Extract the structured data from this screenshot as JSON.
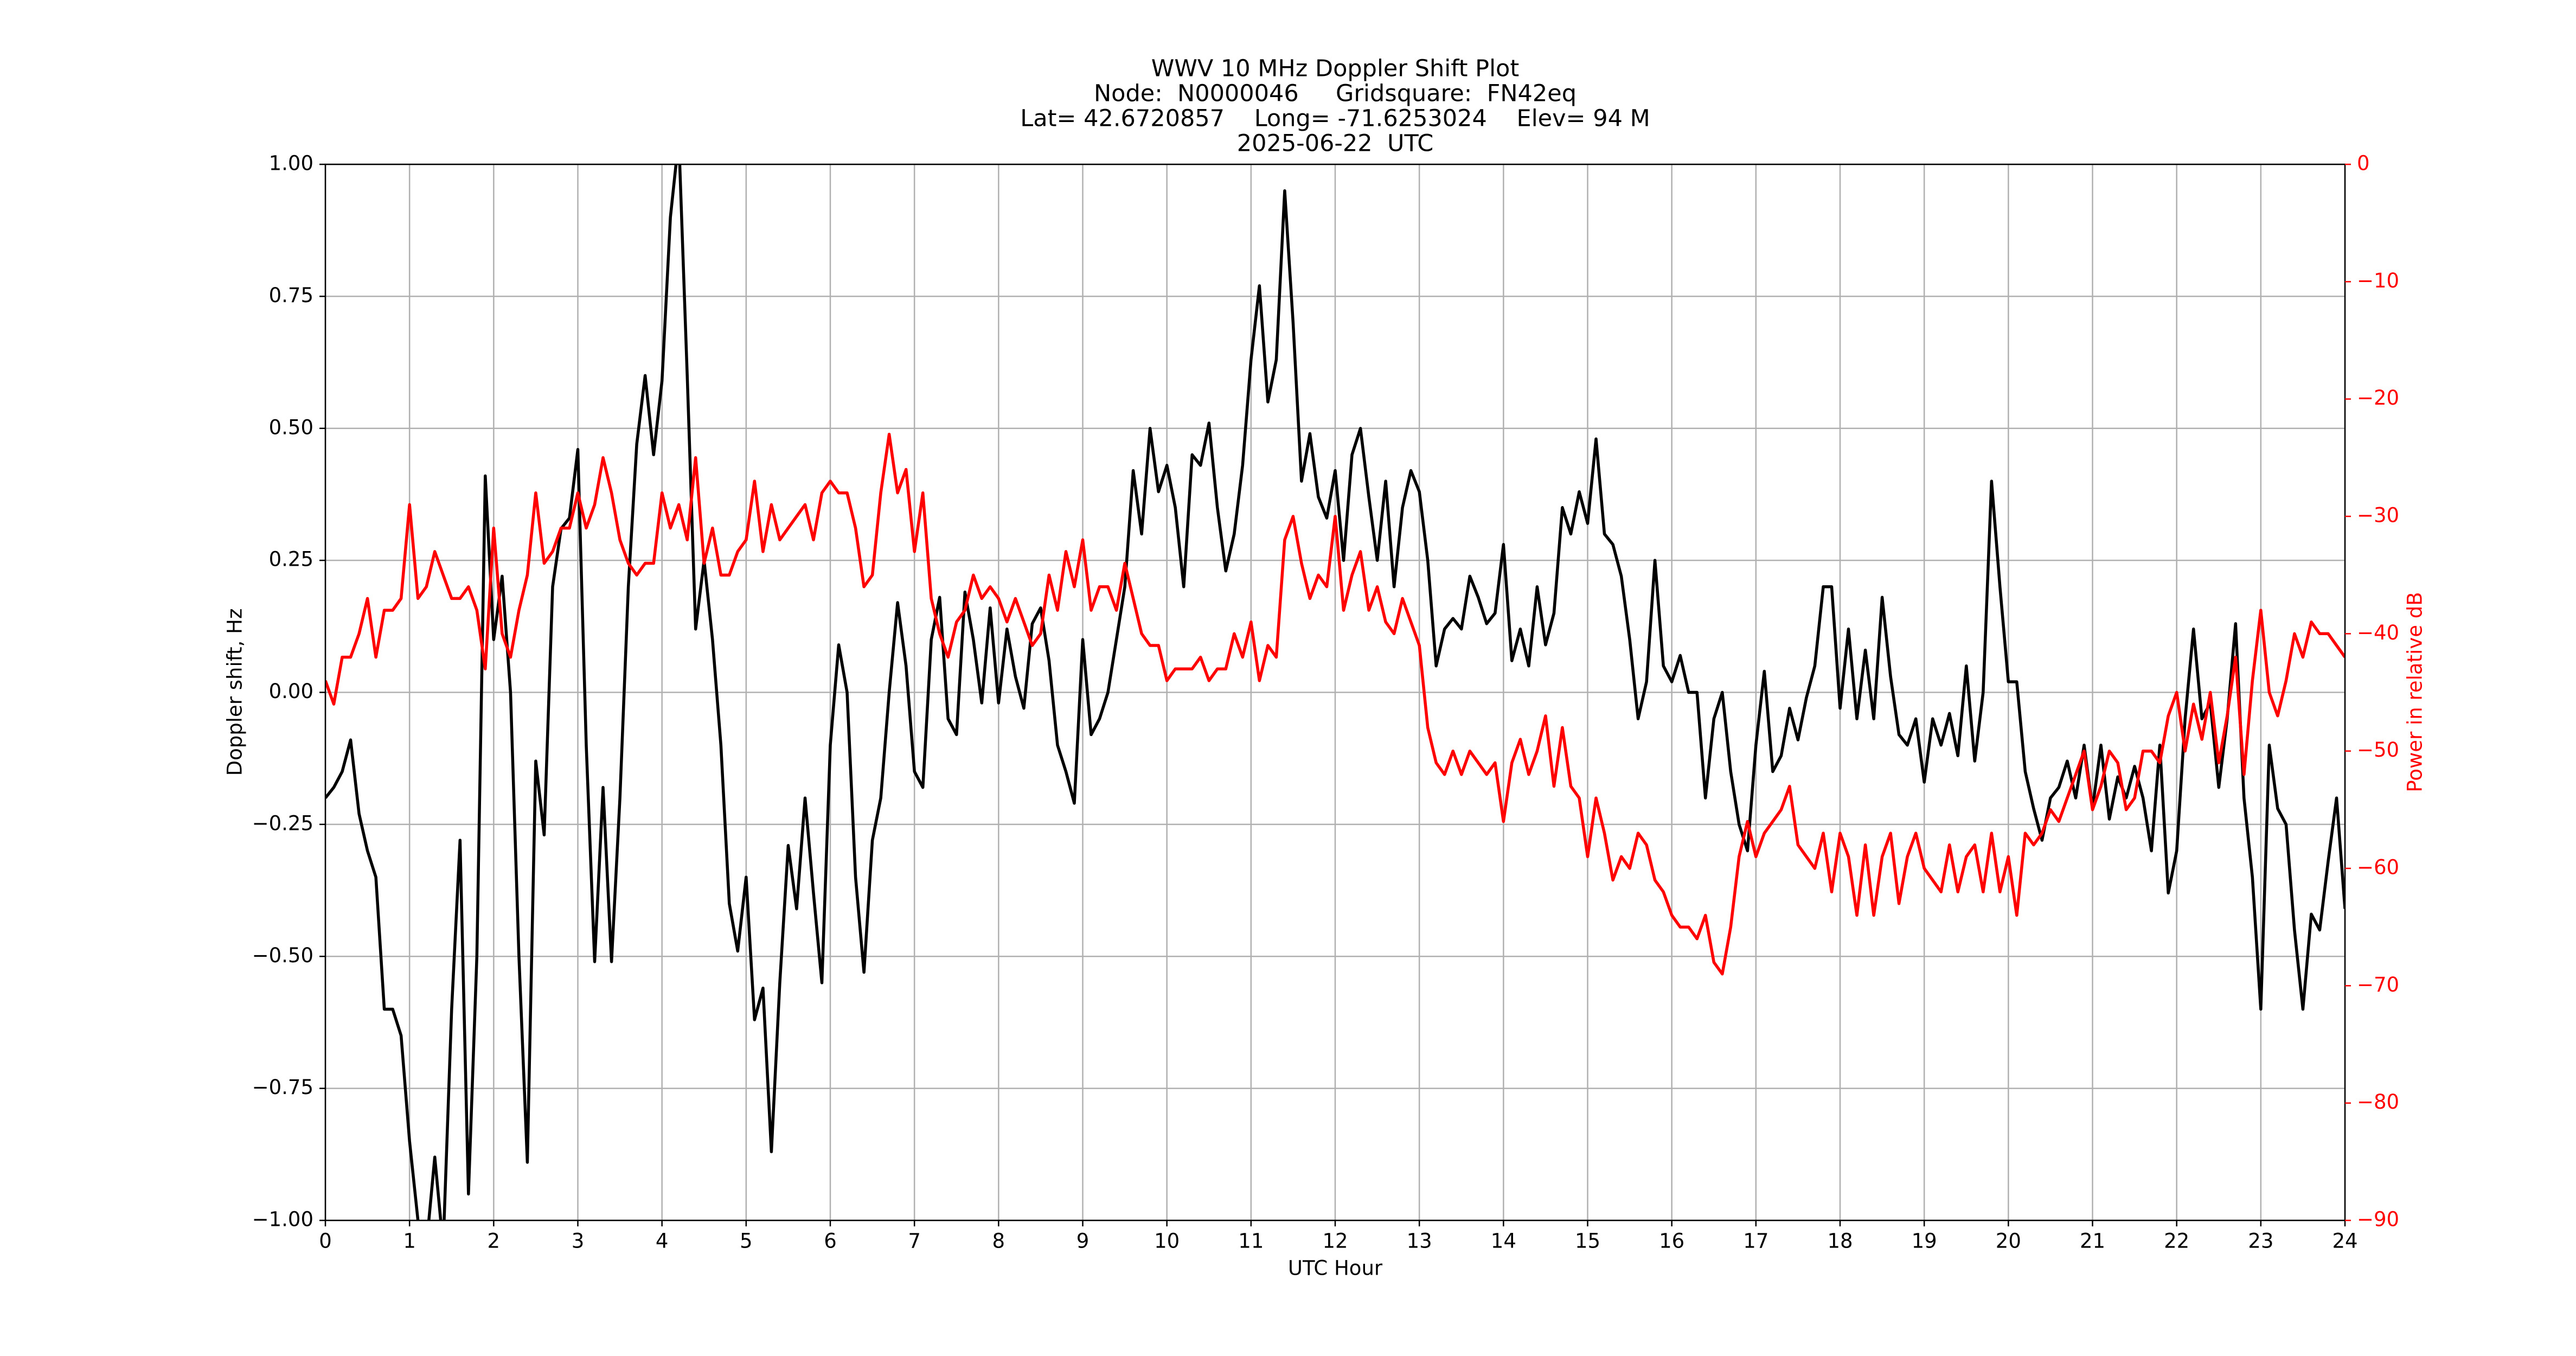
{
  "chart_data": {
    "type": "line",
    "title": "WWV 10 MHz Doppler Shift Plot",
    "subtitle": [
      "Node:  N0000046     Gridsquare:  FN42eq",
      "Lat= 42.6720857    Long= -71.6253024    Elev= 94 M",
      "2025-06-22  UTC"
    ],
    "xlabel": "UTC Hour",
    "ylabel": "Doppler shift, Hz",
    "y2label": "Power in relative dB",
    "y2color": "#ff0000",
    "grid": true,
    "xlim": [
      0,
      24
    ],
    "xticks": [
      0,
      1,
      2,
      3,
      4,
      5,
      6,
      7,
      8,
      9,
      10,
      11,
      12,
      13,
      14,
      15,
      16,
      17,
      18,
      19,
      20,
      21,
      22,
      23,
      24
    ],
    "ylim": [
      -1,
      1
    ],
    "yticks": [
      {
        "value": -1,
        "label": "−1.00"
      },
      {
        "value": -0.75,
        "label": "−0.75"
      },
      {
        "value": -0.5,
        "label": "−0.50"
      },
      {
        "value": -0.25,
        "label": "−0.25"
      },
      {
        "value": 0,
        "label": "0.00"
      },
      {
        "value": 0.25,
        "label": "0.25"
      },
      {
        "value": 0.5,
        "label": "0.50"
      },
      {
        "value": 0.75,
        "label": "0.75"
      },
      {
        "value": 1,
        "label": "1.00"
      }
    ],
    "y2lim": [
      -90,
      0
    ],
    "y2ticks": [
      {
        "value": -90,
        "label": "−90"
      },
      {
        "value": -80,
        "label": "−80"
      },
      {
        "value": -70,
        "label": "−70"
      },
      {
        "value": -60,
        "label": "−60"
      },
      {
        "value": -50,
        "label": "−50"
      },
      {
        "value": -40,
        "label": "−40"
      },
      {
        "value": -30,
        "label": "−30"
      },
      {
        "value": -20,
        "label": "−20"
      },
      {
        "value": -10,
        "label": "−10"
      },
      0
    ],
    "x": [
      0,
      0.1,
      0.2,
      0.3,
      0.4,
      0.5,
      0.6,
      0.7,
      0.8,
      0.9,
      1,
      1.1,
      1.2,
      1.3,
      1.4,
      1.5,
      1.6,
      1.7,
      1.8,
      1.9,
      2,
      2.1,
      2.2,
      2.3,
      2.4,
      2.5,
      2.6,
      2.7,
      2.8,
      2.9,
      3,
      3.1,
      3.2,
      3.3,
      3.4,
      3.5,
      3.6,
      3.7,
      3.8,
      3.9,
      4,
      4.1,
      4.2,
      4.3,
      4.4,
      4.5,
      4.6,
      4.7,
      4.8,
      4.9,
      5,
      5.1,
      5.2,
      5.3,
      5.4,
      5.5,
      5.6,
      5.7,
      5.8,
      5.9,
      6,
      6.1,
      6.2,
      6.3,
      6.4,
      6.5,
      6.6,
      6.7,
      6.8,
      6.9,
      7,
      7.1,
      7.2,
      7.3,
      7.4,
      7.5,
      7.6,
      7.7,
      7.8,
      7.9,
      8,
      8.1,
      8.2,
      8.3,
      8.4,
      8.5,
      8.6,
      8.7,
      8.8,
      8.9,
      9,
      9.1,
      9.2,
      9.3,
      9.4,
      9.5,
      9.6,
      9.7,
      9.8,
      9.9,
      10,
      10.1,
      10.2,
      10.3,
      10.4,
      10.5,
      10.6,
      10.7,
      10.8,
      10.9,
      11,
      11.1,
      11.2,
      11.3,
      11.4,
      11.5,
      11.6,
      11.7,
      11.8,
      11.9,
      12,
      12.1,
      12.2,
      12.3,
      12.4,
      12.5,
      12.6,
      12.7,
      12.8,
      12.9,
      13,
      13.1,
      13.2,
      13.3,
      13.4,
      13.5,
      13.6,
      13.7,
      13.8,
      13.9,
      14,
      14.1,
      14.2,
      14.3,
      14.4,
      14.5,
      14.6,
      14.7,
      14.8,
      14.9,
      15,
      15.1,
      15.2,
      15.3,
      15.4,
      15.5,
      15.6,
      15.7,
      15.8,
      15.9,
      16,
      16.1,
      16.2,
      16.3,
      16.4,
      16.5,
      16.6,
      16.7,
      16.8,
      16.9,
      17,
      17.1,
      17.2,
      17.3,
      17.4,
      17.5,
      17.6,
      17.7,
      17.8,
      17.9,
      18,
      18.1,
      18.2,
      18.3,
      18.4,
      18.5,
      18.6,
      18.7,
      18.8,
      18.9,
      19,
      19.1,
      19.2,
      19.3,
      19.4,
      19.5,
      19.6,
      19.7,
      19.8,
      19.9,
      20,
      20.1,
      20.2,
      20.3,
      20.4,
      20.5,
      20.6,
      20.7,
      20.8,
      20.9,
      21,
      21.1,
      21.2,
      21.3,
      21.4,
      21.5,
      21.6,
      21.7,
      21.8,
      21.9,
      22,
      22.1,
      22.2,
      22.3,
      22.4,
      22.5,
      22.6,
      22.7,
      22.8,
      22.9,
      23,
      23.1,
      23.2,
      23.3,
      23.4,
      23.5,
      23.6,
      23.7,
      23.8,
      23.9,
      24
    ],
    "series": [
      {
        "color": "#000000",
        "values": [
          -0.2,
          -0.18,
          -0.15,
          -0.09,
          -0.23,
          -0.3,
          -0.35,
          -0.6,
          -0.6,
          -0.65,
          -0.85,
          -1.0,
          -1.05,
          -0.88,
          -1.05,
          -0.6,
          -0.28,
          -0.95,
          -0.5,
          0.41,
          0.1,
          0.22,
          0.0,
          -0.5,
          -0.89,
          -0.13,
          -0.27,
          0.2,
          0.31,
          0.33,
          0.46,
          -0.1,
          -0.51,
          -0.18,
          -0.51,
          -0.2,
          0.2,
          0.47,
          0.6,
          0.45,
          0.59,
          0.9,
          1.05,
          0.6,
          0.12,
          0.25,
          0.1,
          -0.1,
          -0.4,
          -0.49,
          -0.35,
          -0.62,
          -0.56,
          -0.87,
          -0.55,
          -0.29,
          -0.41,
          -0.2,
          -0.38,
          -0.55,
          -0.1,
          0.09,
          0.0,
          -0.35,
          -0.53,
          -0.28,
          -0.2,
          0.0,
          0.17,
          0.05,
          -0.15,
          -0.18,
          0.1,
          0.18,
          -0.05,
          -0.08,
          0.19,
          0.1,
          -0.02,
          0.16,
          -0.02,
          0.12,
          0.03,
          -0.03,
          0.13,
          0.16,
          0.06,
          -0.1,
          -0.15,
          -0.21,
          0.1,
          -0.08,
          -0.05,
          0.0,
          0.1,
          0.2,
          0.42,
          0.3,
          0.5,
          0.38,
          0.43,
          0.35,
          0.2,
          0.45,
          0.43,
          0.51,
          0.35,
          0.23,
          0.3,
          0.43,
          0.63,
          0.77,
          0.55,
          0.63,
          0.95,
          0.7,
          0.4,
          0.49,
          0.37,
          0.33,
          0.42,
          0.25,
          0.45,
          0.5,
          0.37,
          0.25,
          0.4,
          0.2,
          0.35,
          0.42,
          0.38,
          0.25,
          0.05,
          0.12,
          0.14,
          0.12,
          0.22,
          0.18,
          0.13,
          0.15,
          0.28,
          0.06,
          0.12,
          0.05,
          0.2,
          0.09,
          0.15,
          0.35,
          0.3,
          0.38,
          0.32,
          0.48,
          0.3,
          0.28,
          0.22,
          0.1,
          -0.05,
          0.02,
          0.25,
          0.05,
          0.02,
          0.07,
          0.0,
          0.0,
          -0.2,
          -0.05,
          0.0,
          -0.15,
          -0.25,
          -0.3,
          -0.1,
          0.04,
          -0.15,
          -0.12,
          -0.03,
          -0.09,
          -0.01,
          0.05,
          0.2,
          0.2,
          -0.03,
          0.12,
          -0.05,
          0.08,
          -0.05,
          0.18,
          0.03,
          -0.08,
          -0.1,
          -0.05,
          -0.17,
          -0.05,
          -0.1,
          -0.04,
          -0.12,
          0.05,
          -0.13,
          0.0,
          0.4,
          0.2,
          0.02,
          0.02,
          -0.15,
          -0.22,
          -0.28,
          -0.2,
          -0.18,
          -0.13,
          -0.2,
          -0.1,
          -0.22,
          -0.1,
          -0.24,
          -0.16,
          -0.2,
          -0.14,
          -0.2,
          -0.3,
          -0.1,
          -0.38,
          -0.3,
          -0.05,
          0.12,
          -0.05,
          -0.02,
          -0.18,
          -0.05,
          0.13,
          -0.2,
          -0.35,
          -0.6,
          -0.1,
          -0.22,
          -0.25,
          -0.45,
          -0.6,
          -0.42,
          -0.45,
          -0.32,
          -0.2,
          -0.41
        ]
      },
      {
        "color": "#ff0000",
        "axis": "y2",
        "values": [
          -44,
          -46,
          -42,
          -42,
          -40,
          -37,
          -42,
          -38,
          -38,
          -37,
          -29,
          -37,
          -36,
          -33,
          -35,
          -37,
          -37,
          -36,
          -38,
          -43,
          -31,
          -40,
          -42,
          -38,
          -35,
          -28,
          -34,
          -33,
          -31,
          -31,
          -28,
          -31,
          -29,
          -25,
          -28,
          -32,
          -34,
          -35,
          -34,
          -34,
          -28,
          -31,
          -29,
          -32,
          -25,
          -34,
          -31,
          -35,
          -35,
          -33,
          -32,
          -27,
          -33,
          -29,
          -32,
          -31,
          -30,
          -29,
          -32,
          -28,
          -27,
          -28,
          -28,
          -31,
          -36,
          -35,
          -28,
          -23,
          -28,
          -26,
          -33,
          -28,
          -37,
          -40,
          -42,
          -39,
          -38,
          -35,
          -37,
          -36,
          -37,
          -39,
          -37,
          -39,
          -41,
          -40,
          -35,
          -38,
          -33,
          -36,
          -32,
          -38,
          -36,
          -36,
          -38,
          -34,
          -37,
          -40,
          -41,
          -41,
          -44,
          -43,
          -43,
          -43,
          -42,
          -44,
          -43,
          -43,
          -40,
          -42,
          -39,
          -44,
          -41,
          -42,
          -32,
          -30,
          -34,
          -37,
          -35,
          -36,
          -30,
          -38,
          -35,
          -33,
          -38,
          -36,
          -39,
          -40,
          -37,
          -39,
          -41,
          -48,
          -51,
          -52,
          -50,
          -52,
          -50,
          -51,
          -52,
          -51,
          -56,
          -51,
          -49,
          -52,
          -50,
          -47,
          -53,
          -48,
          -53,
          -54,
          -59,
          -54,
          -57,
          -61,
          -59,
          -60,
          -57,
          -58,
          -61,
          -62,
          -64,
          -65,
          -65,
          -66,
          -64,
          -68,
          -69,
          -65,
          -59,
          -56,
          -59,
          -57,
          -56,
          -55,
          -53,
          -58,
          -59,
          -60,
          -57,
          -62,
          -57,
          -59,
          -64,
          -58,
          -64,
          -59,
          -57,
          -63,
          -59,
          -57,
          -60,
          -61,
          -62,
          -58,
          -62,
          -59,
          -58,
          -62,
          -57,
          -62,
          -59,
          -64,
          -57,
          -58,
          -57,
          -55,
          -56,
          -54,
          -52,
          -50,
          -55,
          -53,
          -50,
          -51,
          -55,
          -54,
          -50,
          -50,
          -51,
          -47,
          -45,
          -50,
          -46,
          -49,
          -45,
          -51,
          -47,
          -42,
          -52,
          -44,
          -38,
          -45,
          -47,
          -44,
          -40,
          -42,
          -39,
          -40,
          -40,
          -41,
          -42
        ]
      }
    ]
  }
}
